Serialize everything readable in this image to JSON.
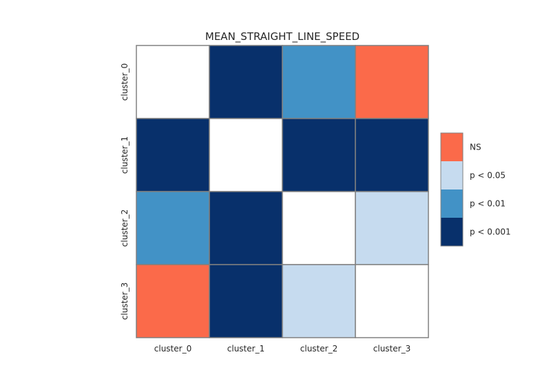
{
  "chart_data": {
    "type": "heatmap",
    "title": "MEAN_STRAIGHT_LINE_SPEED",
    "xlabel": "",
    "ylabel": "",
    "x_categories": [
      "cluster_0",
      "cluster_1",
      "cluster_2",
      "cluster_3"
    ],
    "y_categories": [
      "cluster_0",
      "cluster_1",
      "cluster_2",
      "cluster_3"
    ],
    "matrix": [
      [
        "diag",
        "p < 0.001",
        "p < 0.01",
        "NS"
      ],
      [
        "p < 0.001",
        "diag",
        "p < 0.001",
        "p < 0.001"
      ],
      [
        "p < 0.01",
        "p < 0.001",
        "diag",
        "p < 0.05"
      ],
      [
        "NS",
        "p < 0.001",
        "p < 0.05",
        "diag"
      ]
    ],
    "legend": [
      {
        "label": "NS",
        "color": "#fb6a4a"
      },
      {
        "label": "p < 0.05",
        "color": "#c6dbef"
      },
      {
        "label": "p < 0.01",
        "color": "#4292c6"
      },
      {
        "label": "p < 0.001",
        "color": "#08306b"
      }
    ],
    "diagonal_color": "#ffffff",
    "grid_color": "#808080",
    "grid": true,
    "legend_position": "right"
  }
}
